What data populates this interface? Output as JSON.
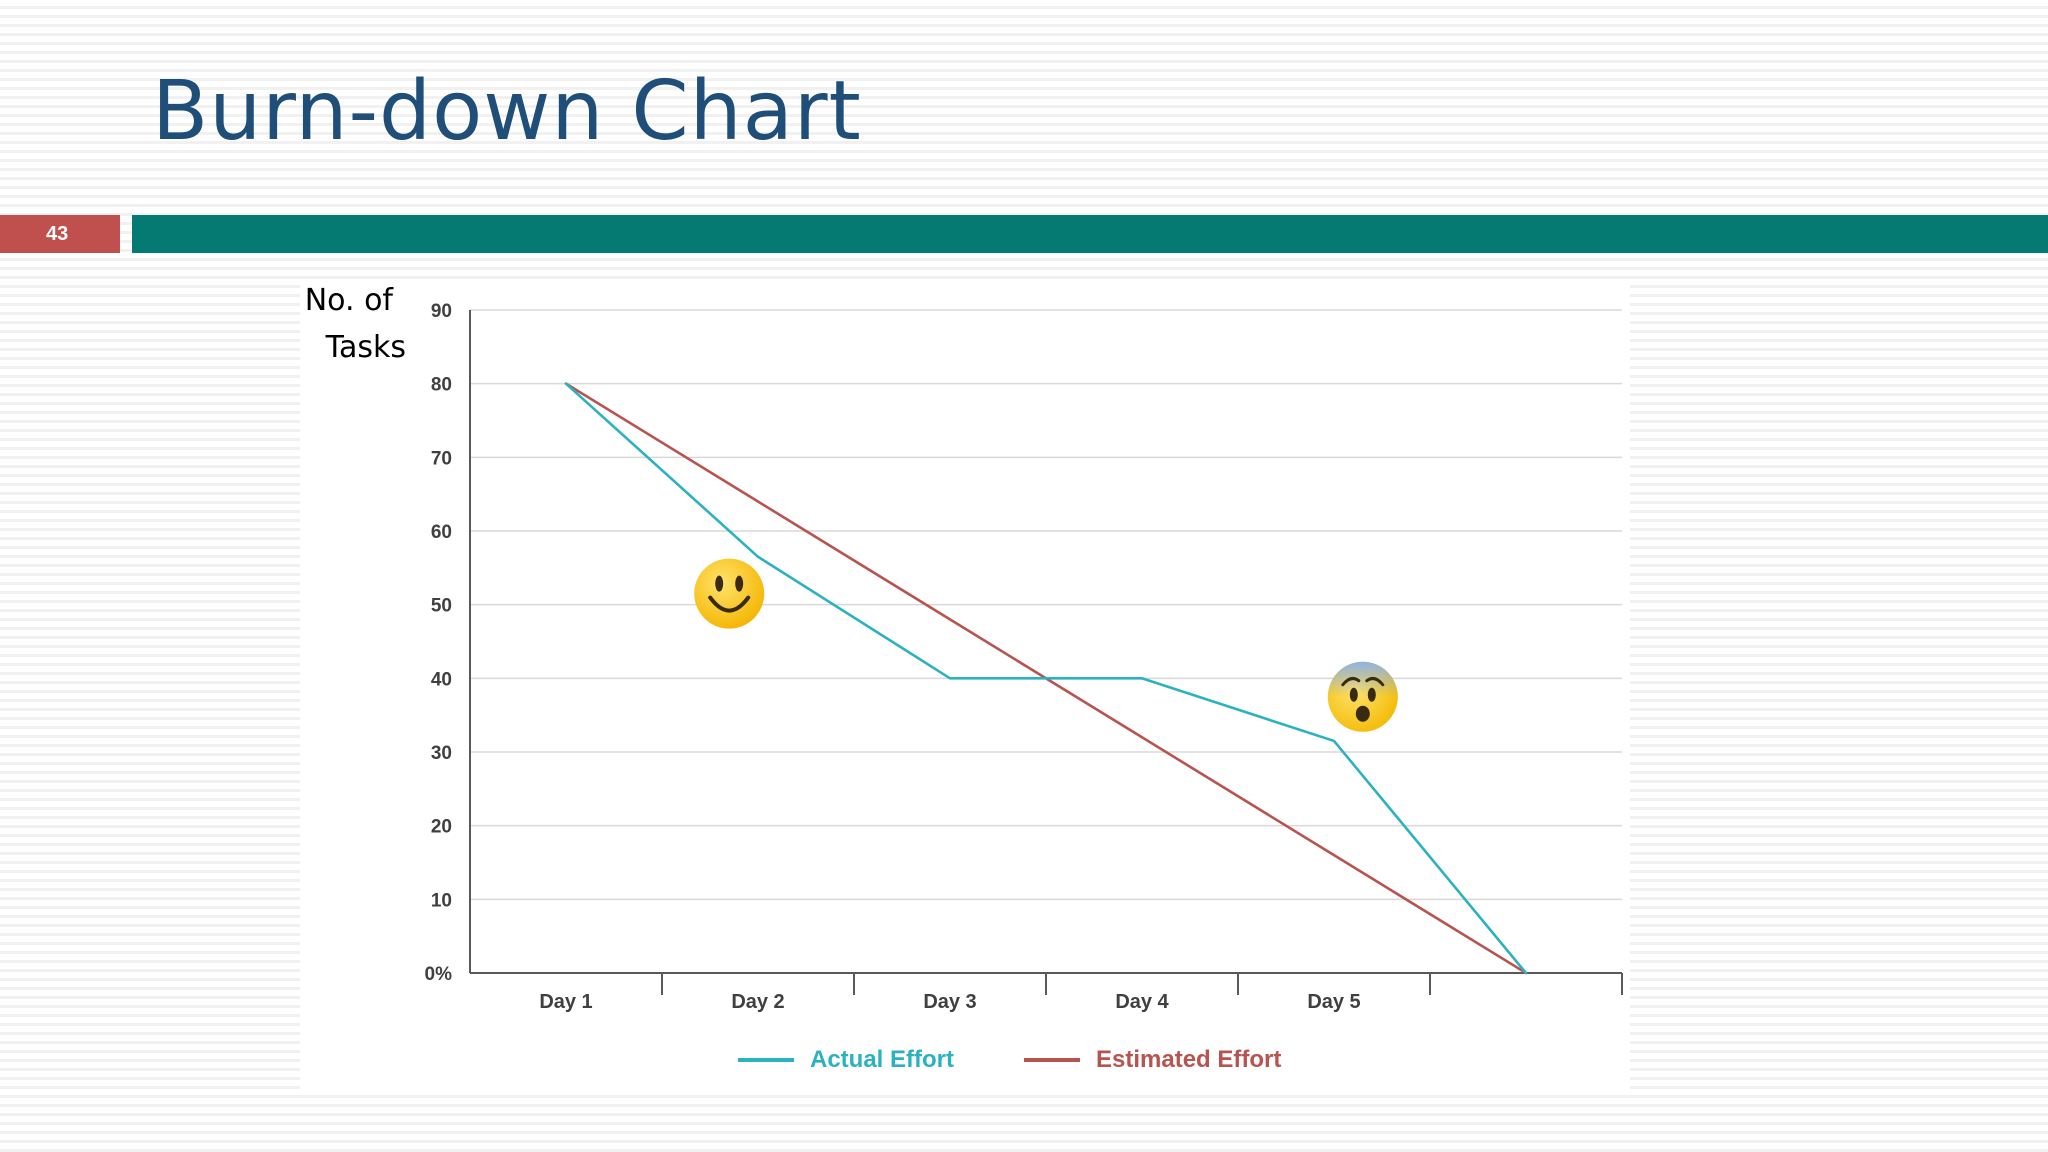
{
  "slide": {
    "title": "Burn-down Chart",
    "page_number": "43"
  },
  "colors": {
    "title": "#1f4e79",
    "badge": "#c0504d",
    "bar": "#047a73",
    "actual": "#2bb2c1",
    "estimated": "#b85450",
    "grid": "#d9d9d9",
    "axis": "#595959"
  },
  "chart_data": {
    "type": "line",
    "title": "",
    "ylabel": "No. of Tasks",
    "xlabel": "",
    "ylim": [
      0,
      90
    ],
    "grid": true,
    "legend_position": "bottom",
    "categories": [
      "Day 1",
      "Day 2",
      "Day 3",
      "Day 4",
      "Day 5",
      ""
    ],
    "y_ticks": [
      "0%",
      "10",
      "20",
      "30",
      "40",
      "50",
      "60",
      "70",
      "80",
      "90"
    ],
    "series": [
      {
        "name": "Actual Effort",
        "color": "#2bb2c1",
        "values": [
          80,
          56.5,
          40,
          40,
          31.5,
          0
        ]
      },
      {
        "name": "Estimated Effort",
        "color": "#b85450",
        "values": [
          80,
          64,
          48,
          32,
          16,
          0
        ]
      }
    ],
    "annotations": [
      {
        "icon": "smiling-face-icon",
        "category_position": 1.85,
        "value": 51.5
      },
      {
        "icon": "anxious-face-icon",
        "category_position": 5.15,
        "value": 37.5
      }
    ]
  }
}
